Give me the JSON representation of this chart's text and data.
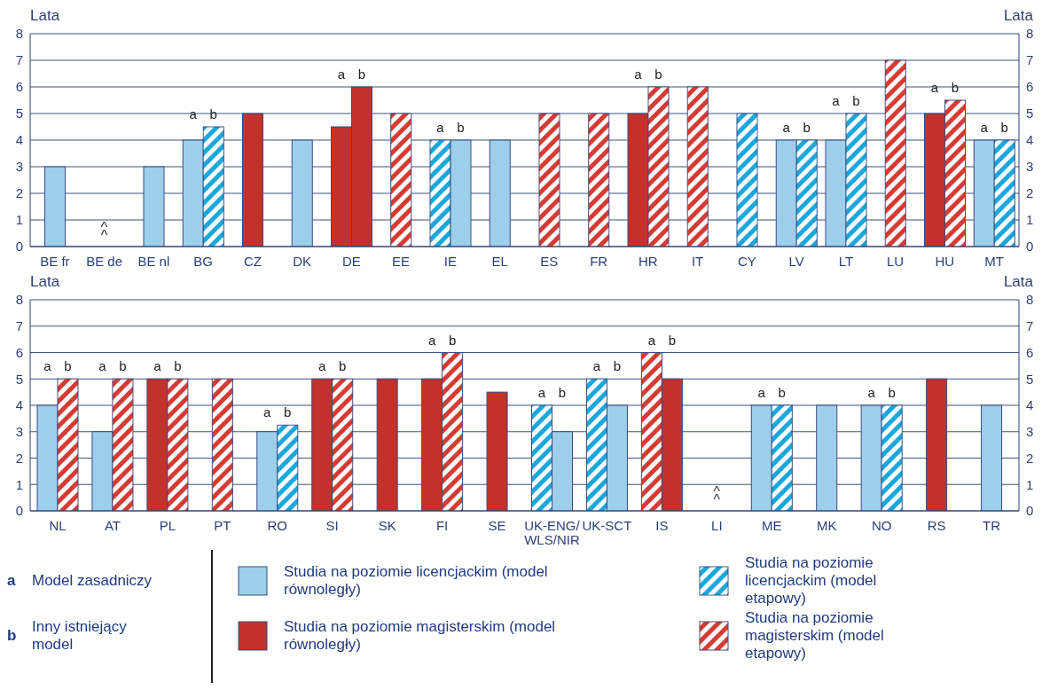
{
  "chart_data": [
    {
      "type": "bar",
      "ylabel": "Lata",
      "y2label": "Lata",
      "ylim": [
        0,
        8
      ],
      "yticks": [
        0,
        1,
        2,
        3,
        4,
        5,
        6,
        7,
        8
      ],
      "y2lim": [
        0,
        8
      ],
      "y2ticks": [
        0,
        1,
        2,
        3,
        4,
        5,
        6,
        7,
        8
      ],
      "grid": "y",
      "categories": [
        "BE fr",
        "BE de",
        "BE nl",
        "BG",
        "CZ",
        "DK",
        "DE",
        "EE",
        "IE",
        "EL",
        "ES",
        "FR",
        "HR",
        "IT",
        "CY",
        "LV",
        "LT",
        "LU",
        "HU",
        "MT"
      ],
      "series": [
        {
          "name": "a",
          "values": [
            3,
            null,
            3,
            4,
            5,
            4,
            4.5,
            5,
            4,
            4,
            5,
            5,
            5,
            6,
            5,
            4,
            4,
            7,
            5,
            4
          ],
          "colors": [
            "#9dcfeb",
            null,
            "#9dcfeb",
            "#9dcfeb",
            "#c4312b",
            "#9dcfeb",
            "#c4312b",
            "#d63b33",
            "#1aa7dc",
            "#9dcfeb",
            "#d63b33",
            "#d63b33",
            "#c4312b",
            "#d63b33",
            "#1aa7dc",
            "#9dcfeb",
            "#9dcfeb",
            "#d63b33",
            "#c4312b",
            "#9dcfeb"
          ],
          "value_labels": [
            null,
            "^^",
            null,
            null,
            null,
            null,
            null,
            null,
            null,
            null,
            null,
            null,
            null,
            null,
            null,
            null,
            null,
            null,
            null,
            null
          ]
        },
        {
          "name": "b",
          "values": [
            null,
            null,
            null,
            4.5,
            null,
            null,
            6,
            null,
            4,
            null,
            null,
            null,
            6,
            null,
            null,
            4,
            5,
            null,
            5.5,
            4
          ],
          "colors": [
            null,
            null,
            null,
            "#1aa7dc",
            null,
            null,
            "#c4312b",
            null,
            "#9dcfeb",
            null,
            null,
            null,
            "#d63b33",
            null,
            null,
            "#1aa7dc",
            "#1aa7dc",
            null,
            "#d63b33",
            "#1aa7dc"
          ]
        }
      ]
    },
    {
      "type": "bar",
      "ylabel": "Lata",
      "y2label": "Lata",
      "ylim": [
        0,
        8
      ],
      "yticks": [
        0,
        1,
        2,
        3,
        4,
        5,
        6,
        7,
        8
      ],
      "y2lim": [
        0,
        8
      ],
      "y2ticks": [
        0,
        1,
        2,
        3,
        4,
        5,
        6,
        7,
        8
      ],
      "grid": "y",
      "categories": [
        "NL",
        "AT",
        "PL",
        "PT",
        "RO",
        "SI",
        "SK",
        "FI",
        "SE",
        "UK-ENG/WLS/NIR",
        "UK-SCT",
        "IS",
        "LI",
        "ME",
        "MK",
        "NO",
        "RS",
        "TR"
      ],
      "series": [
        {
          "name": "a",
          "values": [
            4,
            3,
            5,
            5,
            3,
            5,
            5,
            5,
            4.5,
            4,
            5,
            6,
            null,
            4,
            4,
            4,
            5,
            4
          ],
          "colors": [
            "#9dcfeb",
            "#9dcfeb",
            "#c4312b",
            "#d63b33",
            "#9dcfeb",
            "#c4312b",
            "#c4312b",
            "#c4312b",
            "#c4312b",
            "#1aa7dc",
            "#1aa7dc",
            "#d63b33",
            null,
            "#9dcfeb",
            "#9dcfeb",
            "#9dcfeb",
            "#c4312b",
            "#9dcfeb"
          ],
          "value_labels": [
            null,
            null,
            null,
            null,
            null,
            null,
            null,
            null,
            null,
            null,
            null,
            null,
            "^^",
            null,
            null,
            null,
            null,
            null
          ]
        },
        {
          "name": "b",
          "values": [
            5,
            5,
            5,
            null,
            3.25,
            5,
            null,
            6,
            null,
            3,
            4,
            5,
            null,
            4,
            null,
            4,
            null,
            null
          ],
          "colors": [
            "#d63b33",
            "#d63b33",
            "#d63b33",
            null,
            "#1aa7dc",
            "#d63b33",
            null,
            "#d63b33",
            null,
            "#9dcfeb",
            "#9dcfeb",
            "#c4312b",
            null,
            "#1aa7dc",
            null,
            "#1aa7dc",
            null,
            null
          ]
        }
      ]
    },
    {
      "type": "other",
      "categories": [
        "Studia na poziomie licencjackim (model równoległy)",
        "Studia na poziomie magisterskim (model równoległy)",
        "Studia na poziomie licencjackim (model etapowy)",
        "Studia na poziomie magisterskim (model etapowy)"
      ],
      "colors": [
        "#9dcfeb",
        "#c4312b",
        "#1aa7dc",
        "#d63b33"
      ],
      "annotations": [
        "a",
        "Model zasadniczy",
        "b",
        "Inny istniejący model"
      ]
    }
  ]
}
